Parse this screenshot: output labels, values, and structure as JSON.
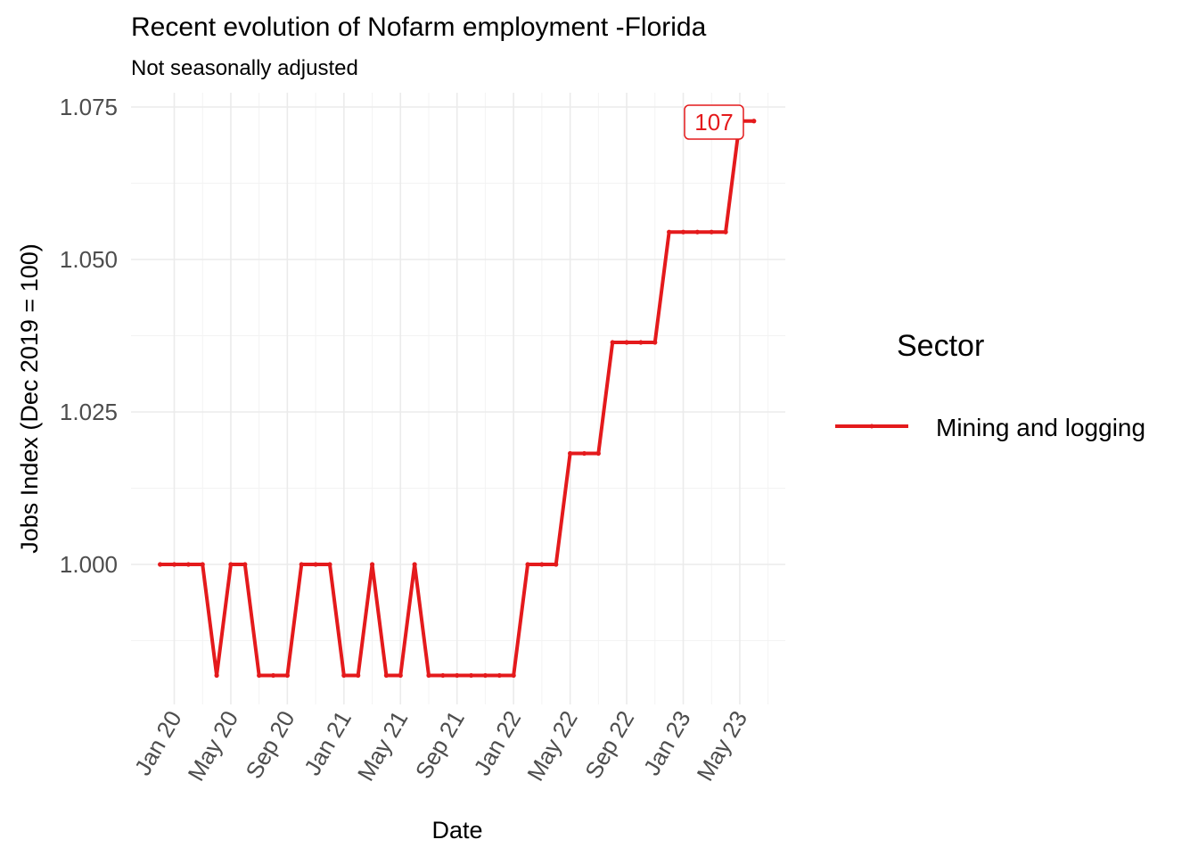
{
  "chart_data": {
    "type": "line",
    "title": "Recent evolution of Nofarm employment -Florida",
    "subtitle": "Not seasonally adjusted",
    "xlabel": "Date",
    "ylabel": "Jobs Index (Dec 2019 = 100)",
    "x_ticks": [
      "Jan 20",
      "May 20",
      "Sep 20",
      "Jan 21",
      "May 21",
      "Sep 21",
      "Jan 22",
      "May 22",
      "Sep 22",
      "Jan 23",
      "May 23"
    ],
    "y_ticks": [
      "1.000",
      "1.025",
      "1.050",
      "1.075"
    ],
    "ylim": [
      0.9775,
      1.0775
    ],
    "grid": true,
    "legend": {
      "title": "Sector",
      "position": "right"
    },
    "x": [
      "2019-12",
      "2020-01",
      "2020-02",
      "2020-03",
      "2020-04",
      "2020-05",
      "2020-06",
      "2020-07",
      "2020-08",
      "2020-09",
      "2020-10",
      "2020-11",
      "2020-12",
      "2021-01",
      "2021-02",
      "2021-03",
      "2021-04",
      "2021-05",
      "2021-06",
      "2021-07",
      "2021-08",
      "2021-09",
      "2021-10",
      "2021-11",
      "2021-12",
      "2022-01",
      "2022-02",
      "2022-03",
      "2022-04",
      "2022-05",
      "2022-06",
      "2022-07",
      "2022-08",
      "2022-09",
      "2022-10",
      "2022-11",
      "2022-12",
      "2023-01",
      "2023-02",
      "2023-03",
      "2023-04",
      "2023-05",
      "2023-06"
    ],
    "series": [
      {
        "name": "Mining and logging",
        "color": "#e41a1c",
        "values": [
          1.0,
          1.0,
          1.0,
          1.0,
          0.9818,
          1.0,
          1.0,
          0.9818,
          0.9818,
          0.9818,
          1.0,
          1.0,
          1.0,
          0.9818,
          0.9818,
          1.0,
          0.9818,
          0.9818,
          1.0,
          0.9818,
          0.9818,
          0.9818,
          0.9818,
          0.9818,
          0.9818,
          0.9818,
          1.0,
          1.0,
          1.0,
          1.0182,
          1.0182,
          1.0182,
          1.0364,
          1.0364,
          1.0364,
          1.0364,
          1.0545,
          1.0545,
          1.0545,
          1.0545,
          1.0545,
          1.0727,
          1.0727
        ],
        "end_label": "107"
      }
    ]
  }
}
